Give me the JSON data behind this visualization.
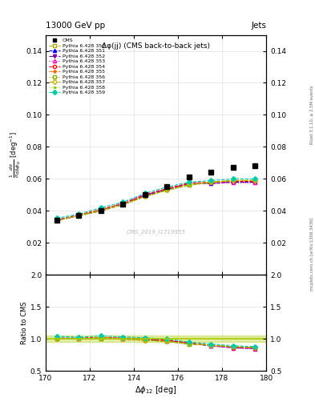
{
  "title_top": "13000 GeV pp",
  "title_right": "Jets",
  "plot_title": "Δφ(jj) (CMS back-to-back jets)",
  "xlabel": "Δφ₁₂ [deg]",
  "ylabel_ratio": "Ratio to CMS",
  "watermark": "CMS_2019_I1719955",
  "rivet_text": "Rivet 3.1.10, ≥ 2.5M events",
  "mcplots_text": "mcplots.cern.ch [arXiv:1306.3436]",
  "xlim": [
    170,
    180
  ],
  "ylim_main": [
    0.0,
    0.15
  ],
  "ylim_ratio": [
    0.5,
    2.0
  ],
  "yticks_main": [
    0.02,
    0.04,
    0.06,
    0.08,
    0.1,
    0.12,
    0.14
  ],
  "yticks_ratio": [
    0.5,
    1.0,
    1.5,
    2.0
  ],
  "xticks": [
    170,
    172,
    174,
    176,
    178,
    180
  ],
  "cms_x": [
    170.5,
    171.5,
    172.5,
    173.5,
    174.5,
    175.5,
    176.5,
    177.5,
    178.5,
    179.5
  ],
  "cms_y": [
    0.034,
    0.037,
    0.04,
    0.044,
    0.05,
    0.055,
    0.061,
    0.064,
    0.067,
    0.068
  ],
  "series": [
    {
      "label": "Pythia 6.428 350",
      "color": "#aaaa00",
      "linestyle": "--",
      "marker": "s",
      "markerfacecolor": "white",
      "x": [
        170.5,
        171.5,
        172.5,
        173.5,
        174.5,
        175.5,
        176.5,
        177.5,
        178.5,
        179.5
      ],
      "y": [
        0.034,
        0.037,
        0.04,
        0.044,
        0.049,
        0.053,
        0.056,
        0.058,
        0.059,
        0.059
      ]
    },
    {
      "label": "Pythia 6.428 351",
      "color": "#0000ff",
      "linestyle": "--",
      "marker": "^",
      "markerfacecolor": "#0000ff",
      "x": [
        170.5,
        171.5,
        172.5,
        173.5,
        174.5,
        175.5,
        176.5,
        177.5,
        178.5,
        179.5
      ],
      "y": [
        0.0345,
        0.0375,
        0.0405,
        0.044,
        0.0495,
        0.0535,
        0.057,
        0.057,
        0.058,
        0.058
      ]
    },
    {
      "label": "Pythia 6.428 352",
      "color": "#7700aa",
      "linestyle": "-.",
      "marker": "v",
      "markerfacecolor": "#7700aa",
      "x": [
        170.5,
        171.5,
        172.5,
        173.5,
        174.5,
        175.5,
        176.5,
        177.5,
        178.5,
        179.5
      ],
      "y": [
        0.034,
        0.037,
        0.0405,
        0.0445,
        0.05,
        0.0535,
        0.057,
        0.0575,
        0.058,
        0.058
      ]
    },
    {
      "label": "Pythia 6.428 353",
      "color": "#ff00aa",
      "linestyle": ":",
      "marker": "^",
      "markerfacecolor": "white",
      "x": [
        170.5,
        171.5,
        172.5,
        173.5,
        174.5,
        175.5,
        176.5,
        177.5,
        178.5,
        179.5
      ],
      "y": [
        0.0345,
        0.037,
        0.041,
        0.045,
        0.0505,
        0.054,
        0.057,
        0.0575,
        0.0575,
        0.0575
      ]
    },
    {
      "label": "Pythia 6.428 354",
      "color": "#ff0000",
      "linestyle": "--",
      "marker": "o",
      "markerfacecolor": "white",
      "x": [
        170.5,
        171.5,
        172.5,
        173.5,
        174.5,
        175.5,
        176.5,
        177.5,
        178.5,
        179.5
      ],
      "y": [
        0.034,
        0.0375,
        0.041,
        0.0445,
        0.05,
        0.054,
        0.0575,
        0.058,
        0.0585,
        0.0585
      ]
    },
    {
      "label": "Pythia 6.428 355",
      "color": "#ff6600",
      "linestyle": "--",
      "marker": "*",
      "markerfacecolor": "#ff6600",
      "x": [
        170.5,
        171.5,
        172.5,
        173.5,
        174.5,
        175.5,
        176.5,
        177.5,
        178.5,
        179.5
      ],
      "y": [
        0.034,
        0.037,
        0.04,
        0.044,
        0.049,
        0.053,
        0.0565,
        0.0575,
        0.059,
        0.059
      ]
    },
    {
      "label": "Pythia 6.428 356",
      "color": "#88aa00",
      "linestyle": ":",
      "marker": "s",
      "markerfacecolor": "white",
      "x": [
        170.5,
        171.5,
        172.5,
        173.5,
        174.5,
        175.5,
        176.5,
        177.5,
        178.5,
        179.5
      ],
      "y": [
        0.034,
        0.037,
        0.04,
        0.044,
        0.049,
        0.053,
        0.056,
        0.058,
        0.059,
        0.059
      ]
    },
    {
      "label": "Pythia 6.428 357",
      "color": "#ccaa00",
      "linestyle": "-.",
      "marker": "D",
      "markerfacecolor": "white",
      "x": [
        170.5,
        171.5,
        172.5,
        173.5,
        174.5,
        175.5,
        176.5,
        177.5,
        178.5,
        179.5
      ],
      "y": [
        0.0345,
        0.037,
        0.041,
        0.044,
        0.049,
        0.053,
        0.0565,
        0.058,
        0.059,
        0.059
      ]
    },
    {
      "label": "Pythia 6.428 358",
      "color": "#88cc00",
      "linestyle": ":",
      "marker": ".",
      "markerfacecolor": "#88cc00",
      "x": [
        170.5,
        171.5,
        172.5,
        173.5,
        174.5,
        175.5,
        176.5,
        177.5,
        178.5,
        179.5
      ],
      "y": [
        0.034,
        0.037,
        0.04,
        0.044,
        0.049,
        0.053,
        0.056,
        0.058,
        0.059,
        0.059
      ]
    },
    {
      "label": "Pythia 6.428 359",
      "color": "#00ccaa",
      "linestyle": "--",
      "marker": "D",
      "markerfacecolor": "#00ccaa",
      "x": [
        170.5,
        171.5,
        172.5,
        173.5,
        174.5,
        175.5,
        176.5,
        177.5,
        178.5,
        179.5
      ],
      "y": [
        0.0355,
        0.038,
        0.042,
        0.0455,
        0.051,
        0.055,
        0.058,
        0.059,
        0.06,
        0.06
      ]
    }
  ],
  "ratio_series": [
    {
      "color": "#aaaa00",
      "linestyle": "--",
      "marker": "s",
      "markerfacecolor": "white",
      "x": [
        170.5,
        171.5,
        172.5,
        173.5,
        174.5,
        175.5,
        176.5,
        177.5,
        178.5,
        179.5
      ],
      "y": [
        1.0,
        1.0,
        1.0,
        1.0,
        0.98,
        0.964,
        0.918,
        0.906,
        0.88,
        0.868
      ]
    },
    {
      "color": "#0000ff",
      "linestyle": "--",
      "marker": "^",
      "markerfacecolor": "#0000ff",
      "x": [
        170.5,
        171.5,
        172.5,
        173.5,
        174.5,
        175.5,
        176.5,
        177.5,
        178.5,
        179.5
      ],
      "y": [
        1.015,
        1.014,
        1.012,
        1.0,
        0.99,
        0.973,
        0.934,
        0.891,
        0.866,
        0.853
      ]
    },
    {
      "color": "#7700aa",
      "linestyle": "-.",
      "marker": "v",
      "markerfacecolor": "#7700aa",
      "x": [
        170.5,
        171.5,
        172.5,
        173.5,
        174.5,
        175.5,
        176.5,
        177.5,
        178.5,
        179.5
      ],
      "y": [
        1.0,
        1.0,
        1.012,
        1.011,
        1.0,
        0.973,
        0.934,
        0.898,
        0.866,
        0.853
      ]
    },
    {
      "color": "#ff00aa",
      "linestyle": ":",
      "marker": "^",
      "markerfacecolor": "white",
      "x": [
        170.5,
        171.5,
        172.5,
        173.5,
        174.5,
        175.5,
        176.5,
        177.5,
        178.5,
        179.5
      ],
      "y": [
        1.015,
        1.0,
        1.025,
        1.023,
        1.01,
        0.982,
        0.934,
        0.898,
        0.858,
        0.846
      ]
    },
    {
      "color": "#ff0000",
      "linestyle": "--",
      "marker": "o",
      "markerfacecolor": "white",
      "x": [
        170.5,
        171.5,
        172.5,
        173.5,
        174.5,
        175.5,
        176.5,
        177.5,
        178.5,
        179.5
      ],
      "y": [
        1.0,
        1.014,
        1.025,
        1.011,
        1.0,
        0.982,
        0.943,
        0.906,
        0.873,
        0.86
      ]
    },
    {
      "color": "#ff6600",
      "linestyle": "--",
      "marker": "*",
      "markerfacecolor": "#ff6600",
      "x": [
        170.5,
        171.5,
        172.5,
        173.5,
        174.5,
        175.5,
        176.5,
        177.5,
        178.5,
        179.5
      ],
      "y": [
        1.0,
        1.0,
        1.0,
        1.0,
        0.98,
        0.964,
        0.926,
        0.898,
        0.88,
        0.868
      ]
    },
    {
      "color": "#88aa00",
      "linestyle": ":",
      "marker": "s",
      "markerfacecolor": "white",
      "x": [
        170.5,
        171.5,
        172.5,
        173.5,
        174.5,
        175.5,
        176.5,
        177.5,
        178.5,
        179.5
      ],
      "y": [
        1.0,
        1.0,
        1.0,
        1.0,
        0.98,
        0.964,
        0.918,
        0.906,
        0.88,
        0.868
      ]
    },
    {
      "color": "#ccaa00",
      "linestyle": "-.",
      "marker": "D",
      "markerfacecolor": "white",
      "x": [
        170.5,
        171.5,
        172.5,
        173.5,
        174.5,
        175.5,
        176.5,
        177.5,
        178.5,
        179.5
      ],
      "y": [
        1.015,
        1.0,
        1.025,
        1.0,
        0.98,
        0.964,
        0.926,
        0.906,
        0.88,
        0.868
      ]
    },
    {
      "color": "#88cc00",
      "linestyle": ":",
      "marker": ".",
      "markerfacecolor": "#88cc00",
      "x": [
        170.5,
        171.5,
        172.5,
        173.5,
        174.5,
        175.5,
        176.5,
        177.5,
        178.5,
        179.5
      ],
      "y": [
        1.0,
        1.0,
        1.0,
        1.0,
        0.98,
        0.964,
        0.918,
        0.906,
        0.88,
        0.868
      ]
    },
    {
      "color": "#00ccaa",
      "linestyle": "--",
      "marker": "D",
      "markerfacecolor": "#00ccaa",
      "x": [
        170.5,
        171.5,
        172.5,
        173.5,
        174.5,
        175.5,
        176.5,
        177.5,
        178.5,
        179.5
      ],
      "y": [
        1.044,
        1.027,
        1.05,
        1.034,
        1.02,
        1.0,
        0.951,
        0.922,
        0.895,
        0.882
      ]
    }
  ],
  "ratio_band_color": "#aacc00",
  "ratio_band_alpha": 0.35,
  "background_color": "#ffffff",
  "grid_color": "#cccccc"
}
